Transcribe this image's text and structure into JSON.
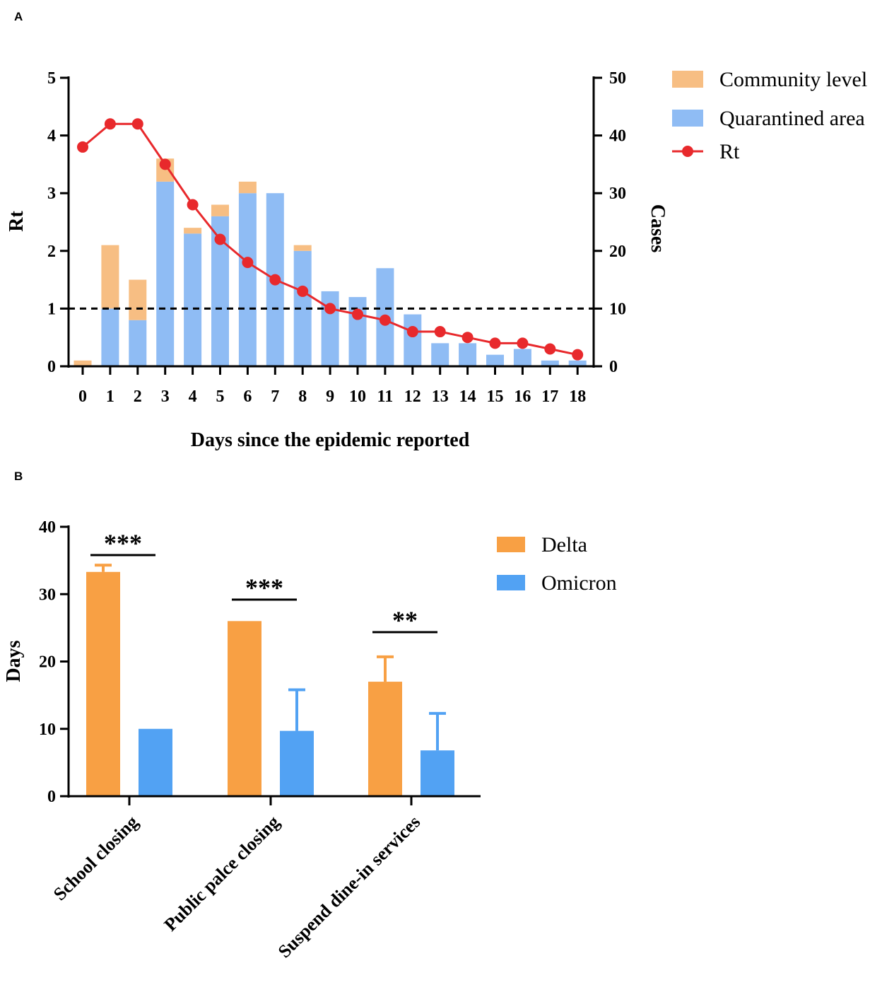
{
  "panels": {
    "a_label": "A",
    "b_label": "B"
  },
  "chart_data": [
    {
      "type": "bar",
      "stacked": true,
      "panel": "A",
      "xlabel": "Days since the epidemic reported",
      "ylabel": "Rt",
      "y2label": "Cases",
      "ylim": [
        0,
        5
      ],
      "y2lim": [
        0,
        50
      ],
      "yticks": [
        "0",
        "1",
        "2",
        "3",
        "4",
        "5"
      ],
      "y2ticks": [
        "0",
        "10",
        "20",
        "30",
        "40",
        "50"
      ],
      "categories": [
        "0",
        "1",
        "2",
        "3",
        "4",
        "5",
        "6",
        "7",
        "8",
        "9",
        "10",
        "11",
        "12",
        "13",
        "14",
        "15",
        "16",
        "17",
        "18"
      ],
      "series": [
        {
          "name": "Quarantined area",
          "axis": "cases",
          "color": "#8fbcf4",
          "values": [
            0,
            10,
            8,
            32,
            23,
            26,
            30,
            30,
            20,
            13,
            12,
            17,
            9,
            4,
            4,
            2,
            3,
            1,
            1
          ]
        },
        {
          "name": "Community level",
          "axis": "cases",
          "color": "#f7be83",
          "values": [
            1,
            11,
            7,
            4,
            1,
            2,
            2,
            0,
            1,
            0,
            0,
            0,
            0,
            0,
            0,
            0,
            0,
            0,
            0
          ]
        },
        {
          "name": "Rt",
          "type": "line",
          "axis": "rt",
          "color": "#e8292c",
          "values": [
            3.8,
            4.2,
            4.2,
            3.5,
            2.8,
            2.2,
            1.8,
            1.5,
            1.3,
            1.0,
            0.9,
            0.8,
            0.6,
            0.6,
            0.5,
            0.4,
            0.4,
            0.3,
            0.2
          ]
        }
      ],
      "reference_line": {
        "rt": 1,
        "style": "dashed"
      },
      "legend": [
        "Community level",
        "Quarantined area",
        "Rt"
      ],
      "legend_position": "top-right"
    },
    {
      "type": "bar",
      "panel": "B",
      "ylabel": "Days",
      "ylim": [
        0,
        40
      ],
      "yticks": [
        "0",
        "10",
        "20",
        "30",
        "40"
      ],
      "categories": [
        "School closing",
        "Public palce closing",
        "Suspend dine-in services"
      ],
      "series": [
        {
          "name": "Delta",
          "color": "#f8a044",
          "values": [
            33.3,
            26,
            17
          ],
          "error_upper": [
            1.0,
            0,
            3.7
          ]
        },
        {
          "name": "Omicron",
          "color": "#52a2f3",
          "values": [
            10,
            9.7,
            6.8
          ],
          "error_upper": [
            0,
            6.1,
            5.5
          ]
        }
      ],
      "significance": [
        "***",
        "***",
        "**"
      ],
      "legend": [
        "Delta",
        "Omicron"
      ],
      "legend_position": "top-right"
    }
  ]
}
